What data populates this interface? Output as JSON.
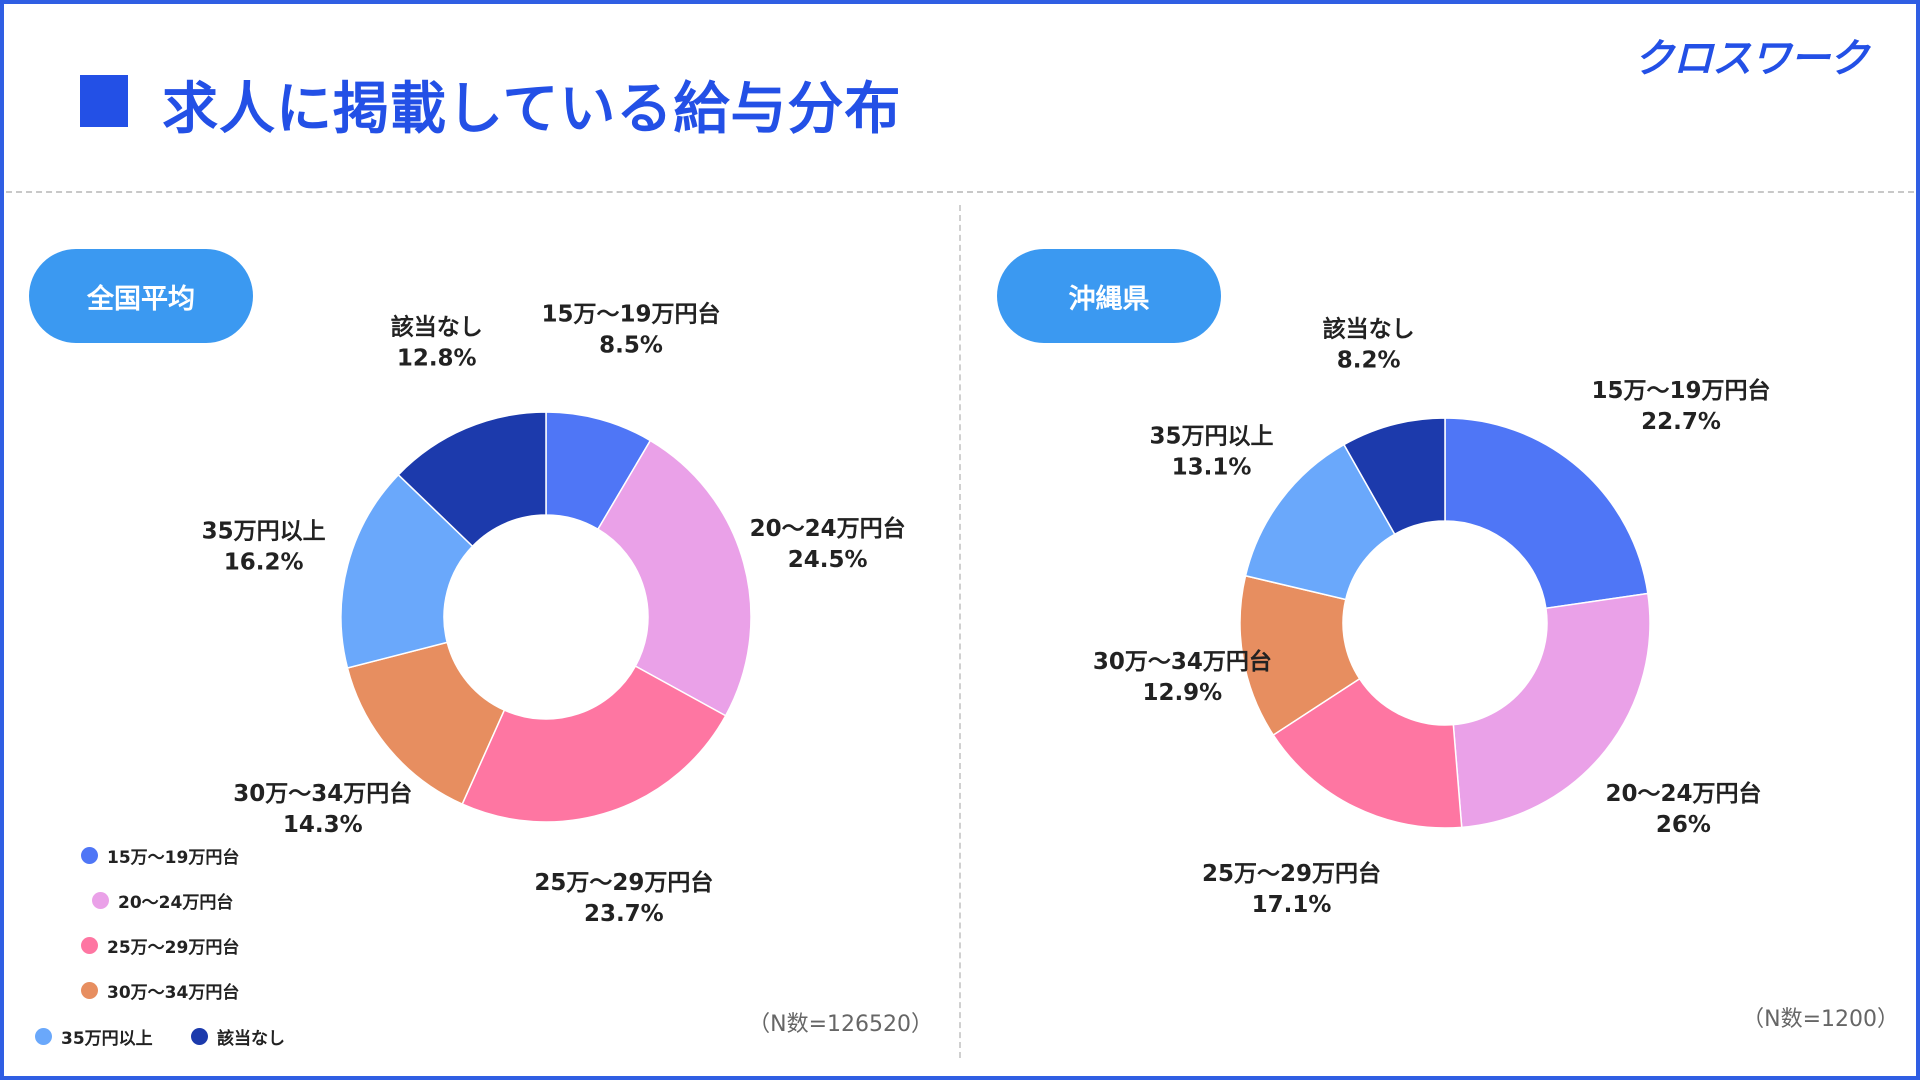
{
  "header": {
    "title": "求人に掲載している給与分布",
    "logo": "クロスワーク"
  },
  "colors": {
    "accent": "#2350e6",
    "pill": "#3b99f1",
    "categories": [
      "#4f76f6",
      "#eaa1e8",
      "#fe76a2",
      "#e78e60",
      "#6aa8fb",
      "#1c3aac"
    ]
  },
  "legend": {
    "items": [
      "15万～19万円台",
      "20～24万円台",
      "25万～29万円台",
      "30万～34万円台",
      "35万円以上",
      "該当なし"
    ]
  },
  "chart_data": [
    {
      "type": "pie",
      "variant": "donut",
      "title": "全国平均",
      "categories": [
        "15万～19万円台",
        "20～24万円台",
        "25万～29万円台",
        "30万～34万円台",
        "35万円以上",
        "該当なし"
      ],
      "values": [
        8.5,
        24.5,
        23.7,
        14.3,
        16.2,
        12.8
      ],
      "value_labels": [
        "8.5%",
        "24.5%",
        "23.7%",
        "14.3%",
        "16.2%",
        "12.8%"
      ],
      "note": "（N数=126520）"
    },
    {
      "type": "pie",
      "variant": "donut",
      "title": "沖縄県",
      "categories": [
        "15万～19万円台",
        "20～24万円台",
        "25万～29万円台",
        "30万～34万円台",
        "35万円以上",
        "該当なし"
      ],
      "values": [
        22.7,
        26,
        17.1,
        12.9,
        13.1,
        8.2
      ],
      "value_labels": [
        "22.7%",
        "26%",
        "17.1%",
        "12.9%",
        "13.1%",
        "8.2%"
      ],
      "note": "（N数=1200）"
    }
  ]
}
